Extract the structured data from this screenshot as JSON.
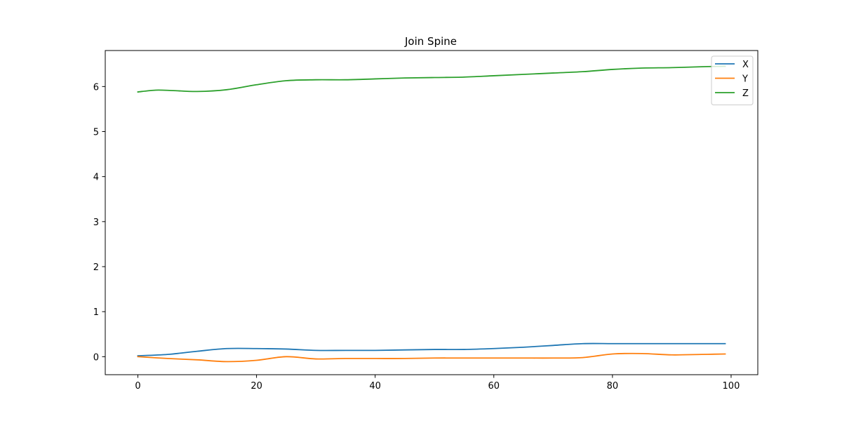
{
  "chart_data": {
    "type": "line",
    "title": "Join Spine",
    "xlabel": "",
    "ylabel": "",
    "xlim": [
      -5.5,
      104.5
    ],
    "ylim": [
      -0.4,
      6.8
    ],
    "xticks": [
      0,
      20,
      40,
      60,
      80,
      100
    ],
    "yticks": [
      0,
      1,
      2,
      3,
      4,
      5,
      6
    ],
    "grid": false,
    "legend_position": "top-right",
    "series": [
      {
        "name": "X",
        "color": "#1f77b4",
        "x": [
          0,
          5,
          10,
          15,
          20,
          25,
          30,
          35,
          40,
          45,
          50,
          55,
          60,
          65,
          70,
          75,
          80,
          85,
          90,
          95,
          99
        ],
        "y": [
          0.02,
          0.05,
          0.12,
          0.18,
          0.18,
          0.17,
          0.14,
          0.14,
          0.14,
          0.15,
          0.16,
          0.16,
          0.18,
          0.21,
          0.25,
          0.29,
          0.29,
          0.29,
          0.29,
          0.29,
          0.29
        ]
      },
      {
        "name": "Y",
        "color": "#ff7f0e",
        "x": [
          0,
          5,
          10,
          15,
          20,
          25,
          30,
          35,
          40,
          45,
          50,
          55,
          60,
          65,
          70,
          75,
          80,
          85,
          90,
          95,
          99
        ],
        "y": [
          0.0,
          -0.04,
          -0.07,
          -0.11,
          -0.08,
          0.0,
          -0.05,
          -0.04,
          -0.04,
          -0.04,
          -0.03,
          -0.03,
          -0.03,
          -0.03,
          -0.03,
          -0.02,
          0.06,
          0.07,
          0.04,
          0.05,
          0.06
        ]
      },
      {
        "name": "Z",
        "color": "#2ca02c",
        "x": [
          0,
          3,
          6,
          10,
          15,
          20,
          25,
          30,
          35,
          40,
          45,
          50,
          55,
          60,
          65,
          70,
          75,
          80,
          85,
          90,
          95,
          99
        ],
        "y": [
          5.88,
          5.92,
          5.91,
          5.89,
          5.93,
          6.04,
          6.13,
          6.15,
          6.15,
          6.17,
          6.19,
          6.2,
          6.21,
          6.24,
          6.27,
          6.3,
          6.33,
          6.38,
          6.41,
          6.42,
          6.44,
          6.45
        ]
      }
    ]
  }
}
